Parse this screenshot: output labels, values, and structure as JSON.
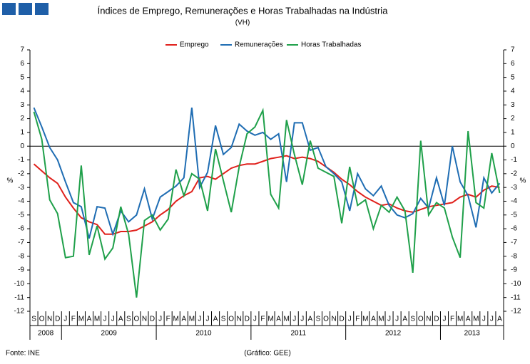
{
  "chart_data": {
    "type": "line",
    "title": "Índices de Emprego, Remunerações e Horas Trabalhadas na Indústria",
    "subtitle": "(VH)",
    "y_label": "%",
    "y2_label": "%",
    "source": "Fonte: INE",
    "credit": "(Gráfico: GEE)",
    "year_groups": [
      {
        "label": "2008",
        "months": [
          "S",
          "O",
          "N",
          "D"
        ]
      },
      {
        "label": "2009",
        "months": [
          "J",
          "F",
          "M",
          "A",
          "M",
          "J",
          "J",
          "A",
          "S",
          "O",
          "N",
          "D"
        ]
      },
      {
        "label": "2010",
        "months": [
          "J",
          "F",
          "M",
          "A",
          "M",
          "J",
          "J",
          "A",
          "S",
          "O",
          "N",
          "D"
        ]
      },
      {
        "label": "2011",
        "months": [
          "J",
          "F",
          "M",
          "A",
          "M",
          "J",
          "J",
          "A",
          "S",
          "O",
          "N",
          "D"
        ]
      },
      {
        "label": "2012",
        "months": [
          "J",
          "F",
          "M",
          "A",
          "M",
          "J",
          "J",
          "A",
          "S",
          "O",
          "N",
          "D"
        ]
      },
      {
        "label": "2013",
        "months": [
          "J",
          "F",
          "M",
          "A",
          "M",
          "J",
          "J",
          "A"
        ]
      }
    ],
    "series": [
      {
        "name": "Emprego",
        "color": "#e0201b",
        "values": [
          -1.3,
          -1.8,
          -2.3,
          -2.7,
          -3.7,
          -4.5,
          -5.2,
          -5.5,
          -5.7,
          -6.4,
          -6.4,
          -6.2,
          -6.2,
          -6.1,
          -5.8,
          -5.5,
          -5.0,
          -4.6,
          -4.0,
          -3.6,
          -3.3,
          -2.3,
          -2.2,
          -2.4,
          -2.0,
          -1.6,
          -1.4,
          -1.3,
          -1.3,
          -1.1,
          -0.9,
          -0.8,
          -0.7,
          -0.9,
          -0.8,
          -0.9,
          -1.1,
          -1.5,
          -1.9,
          -2.4,
          -2.8,
          -3.3,
          -3.7,
          -4.0,
          -4.3,
          -4.2,
          -4.5,
          -4.7,
          -4.8,
          -4.6,
          -4.4,
          -4.3,
          -4.2,
          -4.1,
          -3.7,
          -3.5,
          -3.7,
          -3.2,
          -2.9,
          -3.0
        ]
      },
      {
        "name": "Remunerações",
        "color": "#1f6db3",
        "values": [
          2.8,
          1.4,
          -0.1,
          -1.0,
          -2.6,
          -4.1,
          -4.4,
          -6.7,
          -4.4,
          -4.5,
          -6.4,
          -4.7,
          -5.5,
          -5.0,
          -3.1,
          -5.3,
          -3.7,
          -3.3,
          -2.9,
          -2.3,
          2.8,
          -3.0,
          -1.9,
          1.5,
          -0.6,
          -0.1,
          1.6,
          1.1,
          0.8,
          1.0,
          0.5,
          0.9,
          -2.6,
          1.7,
          1.7,
          -0.3,
          -0.1,
          -1.5,
          -2.0,
          -2.6,
          -4.7,
          -2.0,
          -3.1,
          -3.6,
          -2.9,
          -4.3,
          -5.0,
          -5.2,
          -4.9,
          -3.8,
          -4.5,
          -2.3,
          -4.3,
          0.0,
          -2.6,
          -3.6,
          -5.9,
          -2.3,
          -3.4,
          -2.7
        ]
      },
      {
        "name": "Horas Trabalhadas",
        "color": "#1fa04a",
        "values": [
          2.5,
          0.5,
          -3.9,
          -4.9,
          -8.1,
          -8.0,
          -1.4,
          -7.9,
          -5.8,
          -8.2,
          -7.4,
          -4.4,
          -6.4,
          -11.0,
          -5.4,
          -5.0,
          -6.1,
          -5.3,
          -1.7,
          -3.6,
          -2.0,
          -2.4,
          -4.7,
          -0.2,
          -2.5,
          -4.8,
          -1.5,
          0.9,
          1.4,
          2.6,
          -3.5,
          -4.5,
          1.9,
          -0.6,
          -2.8,
          0.4,
          -1.6,
          -1.9,
          -2.2,
          -5.6,
          -1.5,
          -4.3,
          -3.9,
          -6.0,
          -4.3,
          -4.8,
          -3.7,
          -4.7,
          -9.2,
          0.4,
          -5.0,
          -4.1,
          -4.5,
          -6.6,
          -8.1,
          1.1,
          -4.1,
          -4.5,
          -0.5,
          -3.4
        ]
      }
    ],
    "ylim": [
      -12,
      7
    ],
    "yticks": [
      -12,
      -11,
      -10,
      -9,
      -8,
      -7,
      -6,
      -5,
      -4,
      -3,
      -2,
      -1,
      0,
      1,
      2,
      3,
      4,
      5,
      6,
      7
    ],
    "y2lim": [
      -12,
      7
    ],
    "y2ticks": [
      -12,
      -11,
      -10,
      -9,
      -8,
      -7,
      -6,
      -5,
      -4,
      -3,
      -2,
      -1,
      0,
      1,
      2,
      3,
      4,
      5,
      6,
      7
    ]
  }
}
